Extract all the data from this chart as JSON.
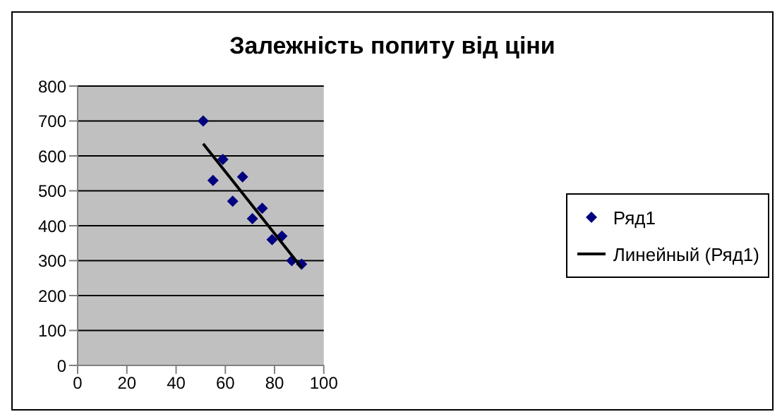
{
  "chart_data": {
    "type": "scatter",
    "title": "Залежність попиту від ціни",
    "series": [
      {
        "name": "Ряд1",
        "color": "#000080",
        "marker": "diamond",
        "x": [
          51,
          55,
          59,
          63,
          67,
          71,
          75,
          79,
          83,
          87,
          91
        ],
        "values": [
          700,
          530,
          590,
          470,
          540,
          420,
          450,
          360,
          370,
          300,
          290
        ]
      },
      {
        "name": "Линейный (Ряд1)",
        "type": "line",
        "color": "#000000",
        "x": [
          51,
          91
        ],
        "values": [
          635,
          280
        ]
      }
    ],
    "xlim": [
      0,
      100
    ],
    "xticks": [
      0,
      20,
      40,
      60,
      80,
      100
    ],
    "ylim": [
      0,
      800
    ],
    "yticks": [
      0,
      100,
      200,
      300,
      400,
      500,
      600,
      700,
      800
    ],
    "grid": "y",
    "legend": "right"
  }
}
